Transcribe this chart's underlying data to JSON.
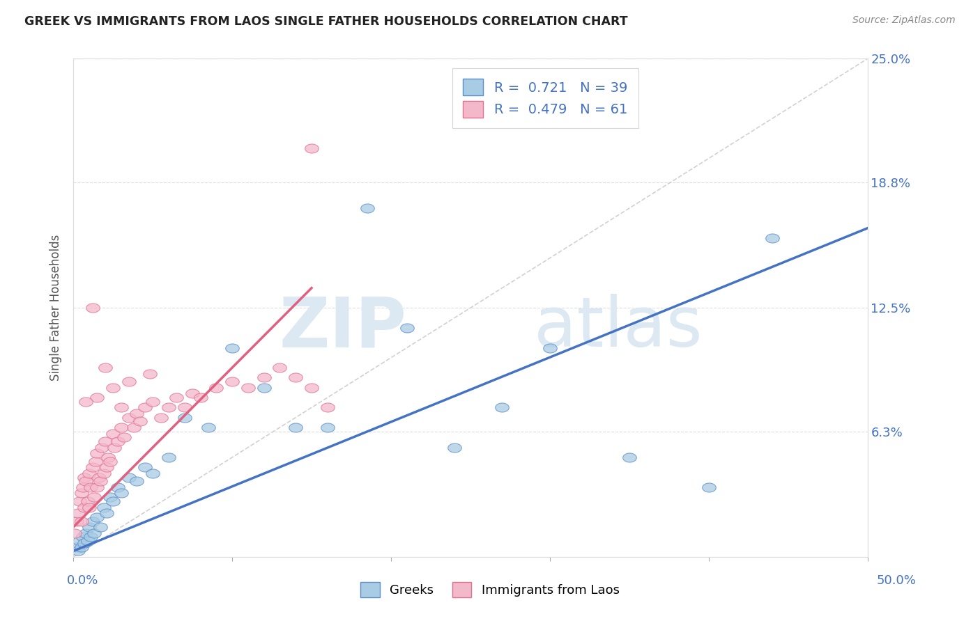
{
  "title": "GREEK VS IMMIGRANTS FROM LAOS SINGLE FATHER HOUSEHOLDS CORRELATION CHART",
  "source": "Source: ZipAtlas.com",
  "ylabel": "Single Father Households",
  "ytick_labels": [
    "6.3%",
    "12.5%",
    "18.8%",
    "25.0%"
  ],
  "ytick_values": [
    6.3,
    12.5,
    18.8,
    25.0
  ],
  "xlim": [
    0.0,
    50.0
  ],
  "ylim": [
    0.0,
    25.0
  ],
  "legend_label1": "Greeks",
  "legend_label2": "Immigrants from Laos",
  "R1": "0.721",
  "N1": "39",
  "R2": "0.479",
  "N2": "61",
  "color_blue": "#a8cce4",
  "color_pink": "#f4b8cb",
  "color_blue_dark": "#5b8dc8",
  "color_pink_dark": "#e07090",
  "color_blue_text": "#4472c4",
  "color_pink_text": "#e06080",
  "background_color": "#ffffff",
  "watermark_zip": "ZIP",
  "watermark_atlas": "atlas",
  "blue_line_x": [
    0.0,
    50.0
  ],
  "blue_line_y": [
    0.3,
    16.5
  ],
  "pink_line_x": [
    0.0,
    15.0
  ],
  "pink_line_y": [
    1.5,
    13.5
  ],
  "diag_line_x": [
    0.0,
    50.0
  ],
  "diag_line_y": [
    0.0,
    25.0
  ],
  "blue_x": [
    0.2,
    0.3,
    0.4,
    0.5,
    0.6,
    0.7,
    0.8,
    0.9,
    1.0,
    1.1,
    1.2,
    1.3,
    1.5,
    1.7,
    1.9,
    2.1,
    2.3,
    2.5,
    2.8,
    3.0,
    3.5,
    4.0,
    4.5,
    5.0,
    6.0,
    7.0,
    8.5,
    10.0,
    12.0,
    14.0,
    16.0,
    18.5,
    21.0,
    24.0,
    27.0,
    30.0,
    35.0,
    40.0,
    44.0
  ],
  "blue_y": [
    0.5,
    0.3,
    0.8,
    0.5,
    1.0,
    0.7,
    1.2,
    0.8,
    1.5,
    1.0,
    1.8,
    1.2,
    2.0,
    1.5,
    2.5,
    2.2,
    3.0,
    2.8,
    3.5,
    3.2,
    4.0,
    3.8,
    4.5,
    4.2,
    5.0,
    7.0,
    6.5,
    10.5,
    8.5,
    6.5,
    6.5,
    17.5,
    11.5,
    5.5,
    7.5,
    10.5,
    5.0,
    3.5,
    16.0
  ],
  "pink_x": [
    0.1,
    0.2,
    0.3,
    0.4,
    0.5,
    0.5,
    0.6,
    0.7,
    0.7,
    0.8,
    0.9,
    1.0,
    1.0,
    1.1,
    1.2,
    1.3,
    1.4,
    1.5,
    1.5,
    1.6,
    1.7,
    1.8,
    1.9,
    2.0,
    2.1,
    2.2,
    2.3,
    2.5,
    2.6,
    2.8,
    3.0,
    3.0,
    3.2,
    3.5,
    3.8,
    4.0,
    4.2,
    4.5,
    5.0,
    5.5,
    6.0,
    6.5,
    7.0,
    7.5,
    8.0,
    9.0,
    10.0,
    11.0,
    12.0,
    13.0,
    14.0,
    15.0,
    16.0,
    2.5,
    1.5,
    0.8,
    1.2,
    2.0,
    3.5,
    4.8,
    15.0
  ],
  "pink_y": [
    1.2,
    1.8,
    2.2,
    2.8,
    3.2,
    1.8,
    3.5,
    2.5,
    4.0,
    3.8,
    2.8,
    4.2,
    2.5,
    3.5,
    4.5,
    3.0,
    4.8,
    3.5,
    5.2,
    4.0,
    3.8,
    5.5,
    4.2,
    5.8,
    4.5,
    5.0,
    4.8,
    6.2,
    5.5,
    5.8,
    6.5,
    7.5,
    6.0,
    7.0,
    6.5,
    7.2,
    6.8,
    7.5,
    7.8,
    7.0,
    7.5,
    8.0,
    7.5,
    8.2,
    8.0,
    8.5,
    8.8,
    8.5,
    9.0,
    9.5,
    9.0,
    8.5,
    7.5,
    8.5,
    8.0,
    7.8,
    12.5,
    9.5,
    8.8,
    9.2,
    20.5
  ]
}
